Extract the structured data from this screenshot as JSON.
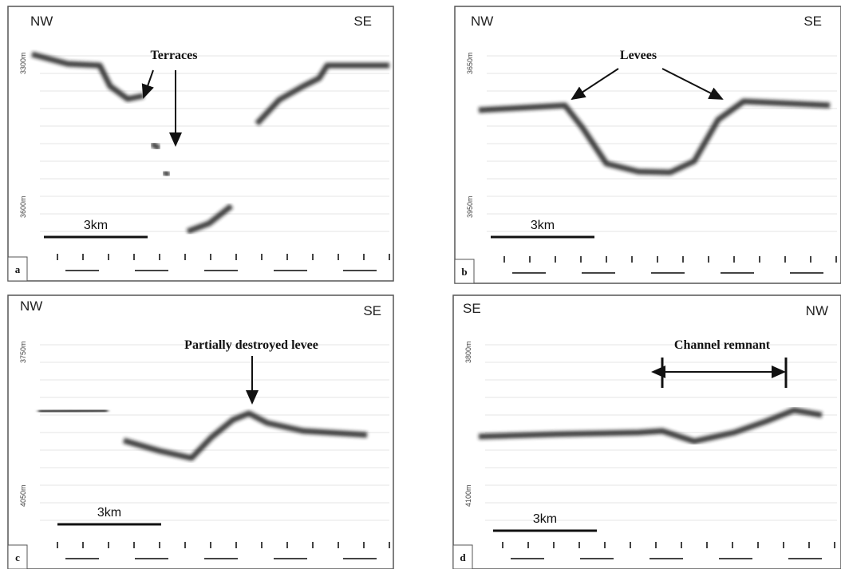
{
  "panels": [
    {
      "label": "a",
      "left": "NW",
      "right": "SE",
      "depth_top": "3300m",
      "depth_bottom": "3600m",
      "scale": "3km",
      "annotation": "Terraces"
    },
    {
      "label": "b",
      "left": "NW",
      "right": "SE",
      "depth_top": "3650m",
      "depth_bottom": "3950m",
      "scale": "3km",
      "annotation": "Levees"
    },
    {
      "label": "c",
      "left": "NW",
      "right": "SE",
      "depth_top": "3750m",
      "depth_bottom": "4050m",
      "scale": "3km",
      "annotation": "Partially destroyed levee"
    },
    {
      "label": "d",
      "left": "SE",
      "right": "NW",
      "depth_top": "3800m",
      "depth_bottom": "4100m",
      "scale": "3km",
      "annotation": "Channel remnant"
    }
  ]
}
